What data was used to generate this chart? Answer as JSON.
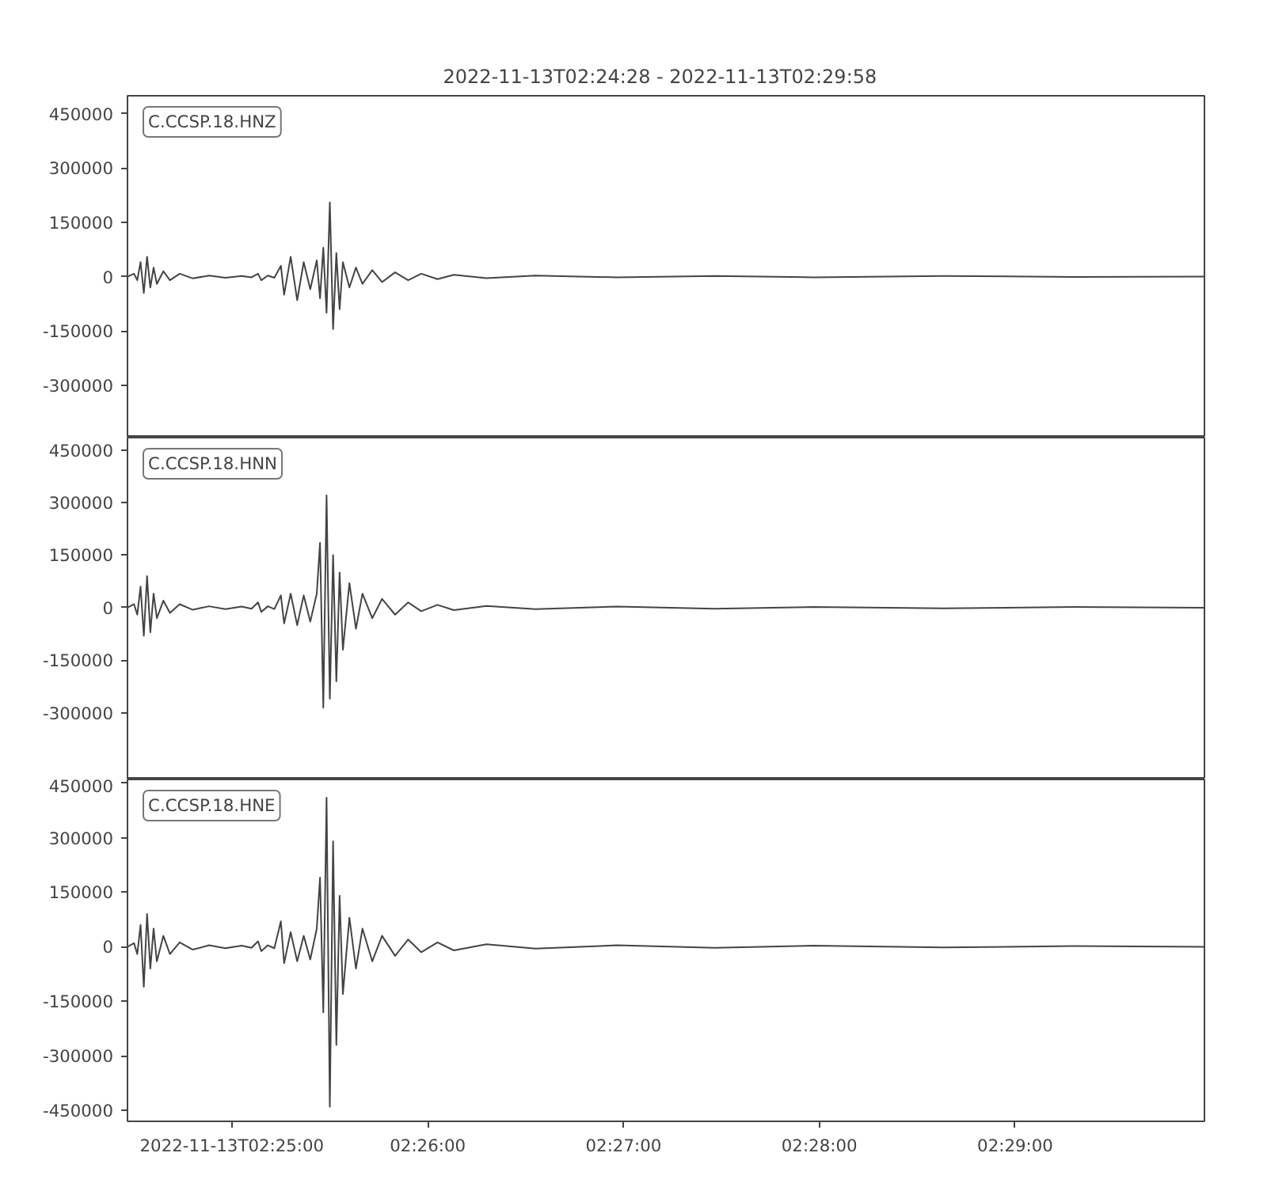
{
  "chart_data": [
    {
      "type": "line",
      "title": "2022-11-13T02:24:28  -  2022-11-13T02:29:58",
      "tick_labels": "y",
      "grid": false,
      "legend": "top left",
      "x": [
        "2022-11-13T02:24:28",
        "2022-11-13T02:24:30",
        "2022-11-13T02:24:31",
        "2022-11-13T02:24:32",
        "2022-11-13T02:24:33",
        "2022-11-13T02:24:34",
        "2022-11-13T02:24:35",
        "2022-11-13T02:24:36",
        "2022-11-13T02:24:37",
        "2022-11-13T02:24:39",
        "2022-11-13T02:24:41",
        "2022-11-13T02:24:44",
        "2022-11-13T02:24:48",
        "2022-11-13T02:24:53",
        "2022-11-13T02:24:58",
        "2022-11-13T02:25:03",
        "2022-11-13T02:25:06",
        "2022-11-13T02:25:08",
        "2022-11-13T02:25:09",
        "2022-11-13T02:25:11",
        "2022-11-13T02:25:13",
        "2022-11-13T02:25:15",
        "2022-11-13T02:25:16",
        "2022-11-13T02:25:18",
        "2022-11-13T02:25:20",
        "2022-11-13T02:25:22",
        "2022-11-13T02:25:24",
        "2022-11-13T02:25:26",
        "2022-11-13T02:25:27",
        "2022-11-13T02:25:28",
        "2022-11-13T02:25:29",
        "2022-11-13T02:25:30",
        "2022-11-13T02:25:31",
        "2022-11-13T02:25:32",
        "2022-11-13T02:25:33",
        "2022-11-13T02:25:34",
        "2022-11-13T02:25:36",
        "2022-11-13T02:25:38",
        "2022-11-13T02:25:40",
        "2022-11-13T02:25:43",
        "2022-11-13T02:25:46",
        "2022-11-13T02:25:50",
        "2022-11-13T02:25:54",
        "2022-11-13T02:25:58",
        "2022-11-13T02:26:03",
        "2022-11-13T02:26:08",
        "2022-11-13T02:26:18",
        "2022-11-13T02:26:33",
        "2022-11-13T02:26:58",
        "2022-11-13T02:27:28",
        "2022-11-13T02:27:58",
        "2022-11-13T02:28:38",
        "2022-11-13T02:29:18",
        "2022-11-13T02:29:58"
      ],
      "xlim": [
        "2022-11-13T02:24:28",
        "2022-11-13T02:29:58"
      ],
      "ylim": [
        -445000,
        500000
      ],
      "yticks": [
        -300000,
        -150000,
        0,
        150000,
        300000,
        450000
      ],
      "series": [
        {
          "name": "C.CCSP.18.HNZ",
          "color": "#444444",
          "values": [
            0,
            8000,
            -10000,
            40000,
            -45000,
            55000,
            -30000,
            25000,
            -20000,
            15000,
            -10000,
            8000,
            -5000,
            3000,
            -3000,
            2000,
            -2000,
            8000,
            -10000,
            3000,
            -3000,
            30000,
            -50000,
            55000,
            -65000,
            40000,
            -35000,
            45000,
            -60000,
            80000,
            -100000,
            205000,
            -145000,
            65000,
            -90000,
            40000,
            -30000,
            25000,
            -20000,
            18000,
            -15000,
            12000,
            -10000,
            8000,
            -7000,
            5000,
            -4000,
            3000,
            -2000,
            2000,
            -2000,
            2000,
            -1000,
            0
          ]
        }
      ]
    },
    {
      "type": "line",
      "tick_labels": "y",
      "grid": false,
      "legend": "top left",
      "x": [
        "2022-11-13T02:24:28",
        "2022-11-13T02:24:30",
        "2022-11-13T02:24:31",
        "2022-11-13T02:24:32",
        "2022-11-13T02:24:33",
        "2022-11-13T02:24:34",
        "2022-11-13T02:24:35",
        "2022-11-13T02:24:36",
        "2022-11-13T02:24:37",
        "2022-11-13T02:24:39",
        "2022-11-13T02:24:41",
        "2022-11-13T02:24:44",
        "2022-11-13T02:24:48",
        "2022-11-13T02:24:53",
        "2022-11-13T02:24:58",
        "2022-11-13T02:25:03",
        "2022-11-13T02:25:06",
        "2022-11-13T02:25:08",
        "2022-11-13T02:25:09",
        "2022-11-13T02:25:11",
        "2022-11-13T02:25:13",
        "2022-11-13T02:25:15",
        "2022-11-13T02:25:16",
        "2022-11-13T02:25:18",
        "2022-11-13T02:25:20",
        "2022-11-13T02:25:22",
        "2022-11-13T02:25:24",
        "2022-11-13T02:25:26",
        "2022-11-13T02:25:27",
        "2022-11-13T02:25:28",
        "2022-11-13T02:25:29",
        "2022-11-13T02:25:30",
        "2022-11-13T02:25:31",
        "2022-11-13T02:25:32",
        "2022-11-13T02:25:33",
        "2022-11-13T02:25:34",
        "2022-11-13T02:25:36",
        "2022-11-13T02:25:38",
        "2022-11-13T02:25:40",
        "2022-11-13T02:25:43",
        "2022-11-13T02:25:46",
        "2022-11-13T02:25:50",
        "2022-11-13T02:25:54",
        "2022-11-13T02:25:58",
        "2022-11-13T02:26:03",
        "2022-11-13T02:26:08",
        "2022-11-13T02:26:18",
        "2022-11-13T02:26:33",
        "2022-11-13T02:26:58",
        "2022-11-13T02:27:28",
        "2022-11-13T02:27:58",
        "2022-11-13T02:28:38",
        "2022-11-13T02:29:18",
        "2022-11-13T02:29:58"
      ],
      "xlim": [
        "2022-11-13T02:24:28",
        "2022-11-13T02:29:58"
      ],
      "ylim": [
        -490000,
        485000
      ],
      "yticks": [
        -300000,
        -150000,
        0,
        150000,
        300000,
        450000
      ],
      "series": [
        {
          "name": "C.CCSP.18.HNN",
          "color": "#444444",
          "values": [
            0,
            10000,
            -20000,
            60000,
            -80000,
            90000,
            -70000,
            40000,
            -30000,
            20000,
            -15000,
            10000,
            -6000,
            4000,
            -4000,
            3000,
            -3000,
            15000,
            -12000,
            4000,
            -4000,
            35000,
            -45000,
            40000,
            -50000,
            35000,
            -40000,
            40000,
            185000,
            -285000,
            320000,
            -260000,
            150000,
            -210000,
            100000,
            -120000,
            70000,
            -60000,
            40000,
            -30000,
            25000,
            -20000,
            15000,
            -10000,
            8000,
            -7000,
            5000,
            -4000,
            3000,
            -3000,
            2000,
            -2000,
            2000,
            0
          ]
        }
      ]
    },
    {
      "type": "line",
      "grid": false,
      "legend": "top left",
      "x": [
        "2022-11-13T02:24:28",
        "2022-11-13T02:24:30",
        "2022-11-13T02:24:31",
        "2022-11-13T02:24:32",
        "2022-11-13T02:24:33",
        "2022-11-13T02:24:34",
        "2022-11-13T02:24:35",
        "2022-11-13T02:24:36",
        "2022-11-13T02:24:37",
        "2022-11-13T02:24:39",
        "2022-11-13T02:24:41",
        "2022-11-13T02:24:44",
        "2022-11-13T02:24:48",
        "2022-11-13T02:24:53",
        "2022-11-13T02:24:58",
        "2022-11-13T02:25:03",
        "2022-11-13T02:25:06",
        "2022-11-13T02:25:08",
        "2022-11-13T02:25:09",
        "2022-11-13T02:25:11",
        "2022-11-13T02:25:13",
        "2022-11-13T02:25:15",
        "2022-11-13T02:25:16",
        "2022-11-13T02:25:18",
        "2022-11-13T02:25:20",
        "2022-11-13T02:25:22",
        "2022-11-13T02:25:24",
        "2022-11-13T02:25:26",
        "2022-11-13T02:25:27",
        "2022-11-13T02:25:28",
        "2022-11-13T02:25:29",
        "2022-11-13T02:25:30",
        "2022-11-13T02:25:31",
        "2022-11-13T02:25:32",
        "2022-11-13T02:25:33",
        "2022-11-13T02:25:34",
        "2022-11-13T02:25:36",
        "2022-11-13T02:25:38",
        "2022-11-13T02:25:40",
        "2022-11-13T02:25:43",
        "2022-11-13T02:25:46",
        "2022-11-13T02:25:50",
        "2022-11-13T02:25:54",
        "2022-11-13T02:25:58",
        "2022-11-13T02:26:03",
        "2022-11-13T02:26:08",
        "2022-11-13T02:26:18",
        "2022-11-13T02:26:33",
        "2022-11-13T02:26:58",
        "2022-11-13T02:27:28",
        "2022-11-13T02:27:58",
        "2022-11-13T02:28:38",
        "2022-11-13T02:29:18",
        "2022-11-13T02:29:58"
      ],
      "xlim": [
        "2022-11-13T02:24:28",
        "2022-11-13T02:29:58"
      ],
      "xticks": [
        {
          "value": "2022-11-13T02:25:00",
          "label": "2022-11-13T02:25:00"
        },
        {
          "value": "2022-11-13T02:26:00",
          "label": "02:26:00"
        },
        {
          "value": "2022-11-13T02:27:00",
          "label": "02:27:00"
        },
        {
          "value": "2022-11-13T02:28:00",
          "label": "02:28:00"
        },
        {
          "value": "2022-11-13T02:29:00",
          "label": "02:29:00"
        }
      ],
      "ylim": [
        -480000,
        460000
      ],
      "yticks": [
        -450000,
        -300000,
        -150000,
        0,
        150000,
        300000,
        450000
      ],
      "series": [
        {
          "name": "C.CCSP.18.HNE",
          "color": "#444444",
          "values": [
            0,
            10000,
            -20000,
            60000,
            -110000,
            90000,
            -60000,
            50000,
            -40000,
            30000,
            -20000,
            12000,
            -8000,
            4000,
            -4000,
            3000,
            -3000,
            15000,
            -12000,
            4000,
            -4000,
            70000,
            -45000,
            40000,
            -40000,
            30000,
            -35000,
            50000,
            190000,
            -180000,
            410000,
            -440000,
            290000,
            -270000,
            140000,
            -130000,
            80000,
            -60000,
            50000,
            -40000,
            30000,
            -25000,
            20000,
            -15000,
            12000,
            -10000,
            7000,
            -5000,
            4000,
            -3000,
            3000,
            -2000,
            2000,
            0
          ]
        }
      ]
    }
  ]
}
